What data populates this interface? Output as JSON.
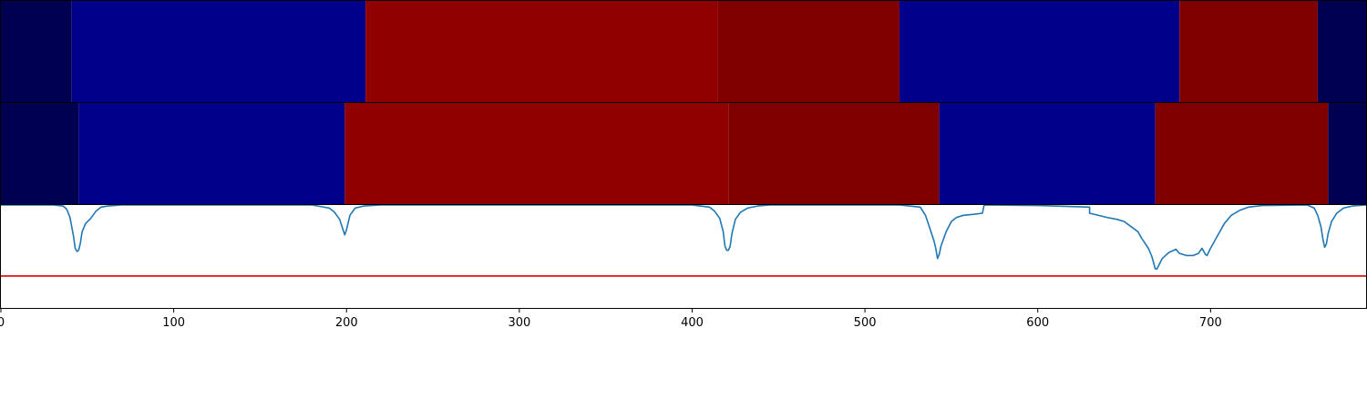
{
  "chart_data": [
    {
      "type": "heatmap",
      "x_range": [
        0,
        790
      ],
      "colors": {
        "edge": "#000050",
        "blue": "#00008b",
        "red": "#900000",
        "dark_red": "#800000"
      },
      "segments": [
        {
          "start": 0,
          "end": 41,
          "color": "edge"
        },
        {
          "start": 41,
          "end": 211,
          "color": "blue"
        },
        {
          "start": 211,
          "end": 415,
          "color": "red"
        },
        {
          "start": 415,
          "end": 520,
          "color": "dark_red"
        },
        {
          "start": 520,
          "end": 682,
          "color": "blue"
        },
        {
          "start": 682,
          "end": 762,
          "color": "dark_red"
        },
        {
          "start": 762,
          "end": 790,
          "color": "edge"
        }
      ]
    },
    {
      "type": "heatmap",
      "x_range": [
        0,
        790
      ],
      "colors": {
        "edge": "#000050",
        "blue": "#00008b",
        "red": "#900000",
        "dark_red": "#800000"
      },
      "segments": [
        {
          "start": 0,
          "end": 45,
          "color": "edge"
        },
        {
          "start": 45,
          "end": 199,
          "color": "blue"
        },
        {
          "start": 199,
          "end": 421,
          "color": "red"
        },
        {
          "start": 421,
          "end": 543,
          "color": "dark_red"
        },
        {
          "start": 543,
          "end": 668,
          "color": "blue"
        },
        {
          "start": 668,
          "end": 768,
          "color": "dark_red"
        },
        {
          "start": 768,
          "end": 790,
          "color": "edge"
        }
      ]
    },
    {
      "type": "line",
      "xlim": [
        0,
        790
      ],
      "ylim": [
        0,
        1
      ],
      "xticks": [
        0,
        100,
        200,
        300,
        400,
        500,
        600,
        700
      ],
      "line_color": "#1f77b4",
      "series": [
        {
          "points": [
            [
              0,
              1.0
            ],
            [
              30,
              1.0
            ],
            [
              36,
              0.99
            ],
            [
              38,
              0.96
            ],
            [
              40,
              0.88
            ],
            [
              42,
              0.7
            ],
            [
              43,
              0.58
            ],
            [
              44,
              0.55
            ],
            [
              45,
              0.56
            ],
            [
              46,
              0.63
            ],
            [
              47,
              0.74
            ],
            [
              49,
              0.82
            ],
            [
              52,
              0.87
            ],
            [
              55,
              0.94
            ],
            [
              58,
              0.98
            ],
            [
              62,
              0.99
            ],
            [
              70,
              1.0
            ],
            [
              180,
              1.0
            ],
            [
              190,
              0.97
            ],
            [
              193,
              0.93
            ],
            [
              196,
              0.86
            ],
            [
              198,
              0.76
            ],
            [
              199,
              0.71
            ],
            [
              200,
              0.76
            ],
            [
              202,
              0.9
            ],
            [
              205,
              0.97
            ],
            [
              210,
              0.99
            ],
            [
              220,
              1.0
            ],
            [
              400,
              1.0
            ],
            [
              410,
              0.98
            ],
            [
              413,
              0.94
            ],
            [
              416,
              0.87
            ],
            [
              418,
              0.74
            ],
            [
              419,
              0.6
            ],
            [
              420,
              0.56
            ],
            [
              421,
              0.56
            ],
            [
              422,
              0.6
            ],
            [
              423,
              0.72
            ],
            [
              425,
              0.86
            ],
            [
              428,
              0.93
            ],
            [
              432,
              0.97
            ],
            [
              438,
              0.99
            ],
            [
              445,
              1.0
            ],
            [
              520,
              1.0
            ],
            [
              532,
              0.98
            ],
            [
              535,
              0.9
            ],
            [
              538,
              0.75
            ],
            [
              540,
              0.65
            ],
            [
              541,
              0.58
            ],
            [
              542,
              0.48
            ],
            [
              543,
              0.52
            ],
            [
              544,
              0.6
            ],
            [
              547,
              0.74
            ],
            [
              550,
              0.84
            ],
            [
              553,
              0.88
            ],
            [
              557,
              0.9
            ],
            [
              563,
              0.91
            ],
            [
              568,
              0.92
            ],
            [
              569,
              1.0
            ],
            [
              600,
              0.995
            ],
            [
              630,
              0.98
            ],
            [
              630,
              0.92
            ],
            [
              640,
              0.88
            ],
            [
              646,
              0.86
            ],
            [
              650,
              0.84
            ],
            [
              654,
              0.79
            ],
            [
              658,
              0.74
            ],
            [
              660,
              0.68
            ],
            [
              662,
              0.63
            ],
            [
              664,
              0.58
            ],
            [
              666,
              0.5
            ],
            [
              668,
              0.38
            ],
            [
              669,
              0.38
            ],
            [
              672,
              0.48
            ],
            [
              676,
              0.54
            ],
            [
              680,
              0.57
            ],
            [
              682,
              0.53
            ],
            [
              686,
              0.51
            ],
            [
              690,
              0.51
            ],
            [
              693,
              0.53
            ],
            [
              695,
              0.58
            ],
            [
              697,
              0.52
            ],
            [
              698,
              0.51
            ],
            [
              700,
              0.58
            ],
            [
              704,
              0.7
            ],
            [
              708,
              0.82
            ],
            [
              712,
              0.9
            ],
            [
              717,
              0.95
            ],
            [
              722,
              0.98
            ],
            [
              730,
              0.995
            ],
            [
              756,
              1.0
            ],
            [
              760,
              0.97
            ],
            [
              762,
              0.9
            ],
            [
              764,
              0.78
            ],
            [
              765,
              0.67
            ],
            [
              766,
              0.59
            ],
            [
              767,
              0.62
            ],
            [
              768,
              0.72
            ],
            [
              770,
              0.84
            ],
            [
              773,
              0.92
            ],
            [
              777,
              0.97
            ],
            [
              782,
              0.99
            ],
            [
              790,
              1.0
            ]
          ]
        }
      ],
      "threshold": {
        "value": 0.31,
        "color": "#e00000"
      }
    }
  ]
}
